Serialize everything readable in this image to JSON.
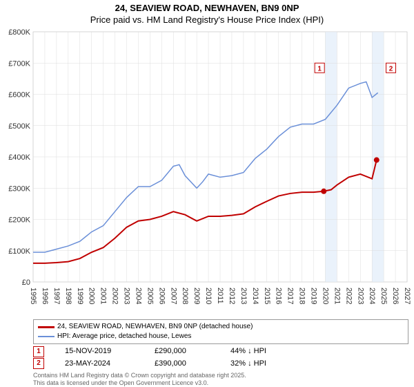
{
  "title_line1": "24, SEAVIEW ROAD, NEWHAVEN, BN9 0NP",
  "title_line2": "Price paid vs. HM Land Registry's House Price Index (HPI)",
  "chart": {
    "type": "line",
    "x_domain": [
      1995,
      2027
    ],
    "y_domain": [
      0,
      800000
    ],
    "y_ticks": [
      0,
      100000,
      200000,
      300000,
      400000,
      500000,
      600000,
      700000,
      800000
    ],
    "y_labels": [
      "£0",
      "£100K",
      "£200K",
      "£300K",
      "£400K",
      "£500K",
      "£600K",
      "£700K",
      "£800K"
    ],
    "x_ticks": [
      1995,
      1996,
      1997,
      1998,
      1999,
      2000,
      2001,
      2002,
      2003,
      2004,
      2005,
      2006,
      2007,
      2008,
      2009,
      2010,
      2011,
      2012,
      2013,
      2014,
      2015,
      2016,
      2017,
      2018,
      2019,
      2020,
      2021,
      2022,
      2023,
      2024,
      2025,
      2026,
      2027
    ],
    "background_color": "#ffffff",
    "grid_color": "#dcdcdc",
    "shade_color": "#eaf2fb",
    "shade_ranges": [
      [
        2020,
        2021
      ],
      [
        2024,
        2025
      ]
    ],
    "paid_series": {
      "color": "#c00000",
      "width": 2,
      "data": [
        [
          1995,
          60000
        ],
        [
          1996,
          60000
        ],
        [
          1997,
          62000
        ],
        [
          1998,
          65000
        ],
        [
          1999,
          75000
        ],
        [
          2000,
          95000
        ],
        [
          2001,
          110000
        ],
        [
          2002,
          140000
        ],
        [
          2003,
          175000
        ],
        [
          2004,
          195000
        ],
        [
          2005,
          200000
        ],
        [
          2006,
          210000
        ],
        [
          2007,
          225000
        ],
        [
          2008,
          215000
        ],
        [
          2009,
          195000
        ],
        [
          2010,
          210000
        ],
        [
          2011,
          210000
        ],
        [
          2012,
          213000
        ],
        [
          2013,
          218000
        ],
        [
          2014,
          240000
        ],
        [
          2015,
          258000
        ],
        [
          2016,
          275000
        ],
        [
          2017,
          283000
        ],
        [
          2018,
          287000
        ],
        [
          2019,
          287000
        ],
        [
          2019.87,
          290000
        ],
        [
          2020.5,
          295000
        ],
        [
          2021,
          310000
        ],
        [
          2022,
          335000
        ],
        [
          2023,
          345000
        ],
        [
          2024,
          330000
        ],
        [
          2024.39,
          390000
        ]
      ]
    },
    "hpi_series": {
      "color": "#6a8fd8",
      "width": 1.5,
      "data": [
        [
          1995,
          95000
        ],
        [
          1996,
          95000
        ],
        [
          1997,
          105000
        ],
        [
          1998,
          115000
        ],
        [
          1999,
          130000
        ],
        [
          2000,
          160000
        ],
        [
          2001,
          180000
        ],
        [
          2002,
          225000
        ],
        [
          2003,
          270000
        ],
        [
          2004,
          305000
        ],
        [
          2005,
          305000
        ],
        [
          2006,
          325000
        ],
        [
          2007,
          370000
        ],
        [
          2007.5,
          375000
        ],
        [
          2008,
          340000
        ],
        [
          2009,
          300000
        ],
        [
          2009.5,
          320000
        ],
        [
          2010,
          345000
        ],
        [
          2011,
          335000
        ],
        [
          2012,
          340000
        ],
        [
          2013,
          350000
        ],
        [
          2014,
          395000
        ],
        [
          2015,
          425000
        ],
        [
          2016,
          465000
        ],
        [
          2017,
          495000
        ],
        [
          2018,
          505000
        ],
        [
          2019,
          505000
        ],
        [
          2020,
          520000
        ],
        [
          2021,
          565000
        ],
        [
          2022,
          620000
        ],
        [
          2023,
          635000
        ],
        [
          2023.5,
          640000
        ],
        [
          2024,
          590000
        ],
        [
          2024.5,
          605000
        ]
      ]
    },
    "markers": [
      {
        "n": "1",
        "x": 2019.87,
        "y": 290000,
        "label_x": 2019.1,
        "label_y": 700000
      },
      {
        "n": "2",
        "x": 2024.39,
        "y": 390000,
        "label_x": 2025.2,
        "label_y": 700000
      }
    ]
  },
  "legend": {
    "paid_label": "24, SEAVIEW ROAD, NEWHAVEN, BN9 0NP (detached house)",
    "hpi_label": "HPI: Average price, detached house, Lewes"
  },
  "transactions": [
    {
      "n": "1",
      "date": "15-NOV-2019",
      "price": "£290,000",
      "delta": "44% ↓ HPI"
    },
    {
      "n": "2",
      "date": "23-MAY-2024",
      "price": "£390,000",
      "delta": "32% ↓ HPI"
    }
  ],
  "footer_l1": "Contains HM Land Registry data © Crown copyright and database right 2025.",
  "footer_l2": "This data is licensed under the Open Government Licence v3.0."
}
